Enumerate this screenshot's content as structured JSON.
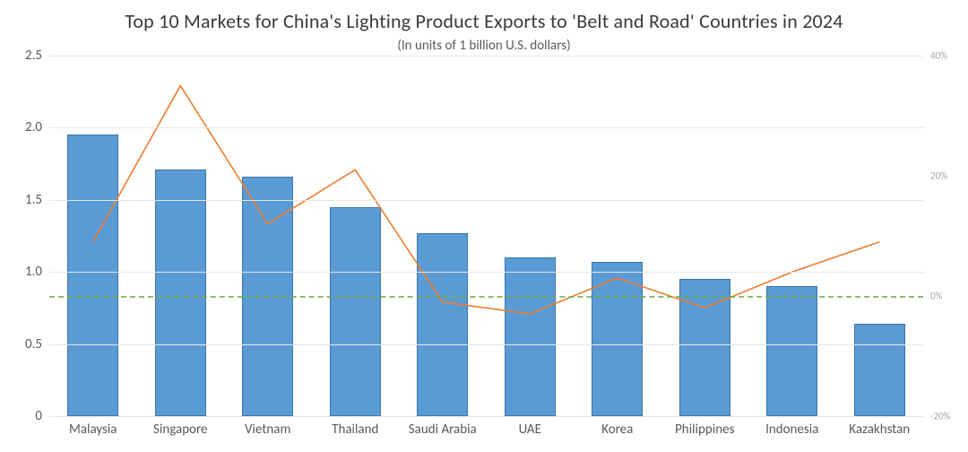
{
  "chart": {
    "type": "bar+line",
    "title": "Top 10 Markets for China's Lighting Product Exports to 'Belt and Road' Countries in 2024",
    "subtitle": "(In units of 1 billion U.S. dollars)",
    "title_fontsize": 22,
    "subtitle_fontsize": 15,
    "label_fontsize": 15,
    "background_color": "#ffffff",
    "grid_color": "#e6e6e6",
    "categories": [
      "Malaysia",
      "Singapore",
      "Vietnam",
      "Thailand",
      "Saudi Arabia",
      "UAE",
      "Korea",
      "Philippines",
      "Indonesia",
      "Kazakhstan"
    ],
    "bar_values": [
      1.95,
      1.71,
      1.66,
      1.45,
      1.27,
      1.1,
      1.07,
      0.95,
      0.9,
      0.64
    ],
    "bar_color": "#5b9bd5",
    "bar_border_color": "#3a75a8",
    "bar_width_ratio": 0.58,
    "y_left": {
      "min": 0,
      "max": 2.5,
      "ticks": [
        0,
        0.5,
        1.0,
        1.5,
        2.0,
        2.5
      ],
      "tick_labels": [
        "0",
        "0.5",
        "1.0",
        "1.5",
        "2.0",
        "2.5"
      ]
    },
    "line_values_pct": [
      9,
      35,
      12,
      21,
      -1,
      -3,
      3,
      -2,
      4,
      9
    ],
    "line_color": "#ed7d31",
    "line_width": 1.6,
    "y_right": {
      "min": -20,
      "max": 40,
      "ticks": [
        -20,
        0,
        20,
        40
      ],
      "tick_labels": [
        "-20%",
        "0%",
        "20%",
        "40%"
      ]
    },
    "zero_line_color": "#70ad47",
    "zero_line_dash": "6,6"
  }
}
